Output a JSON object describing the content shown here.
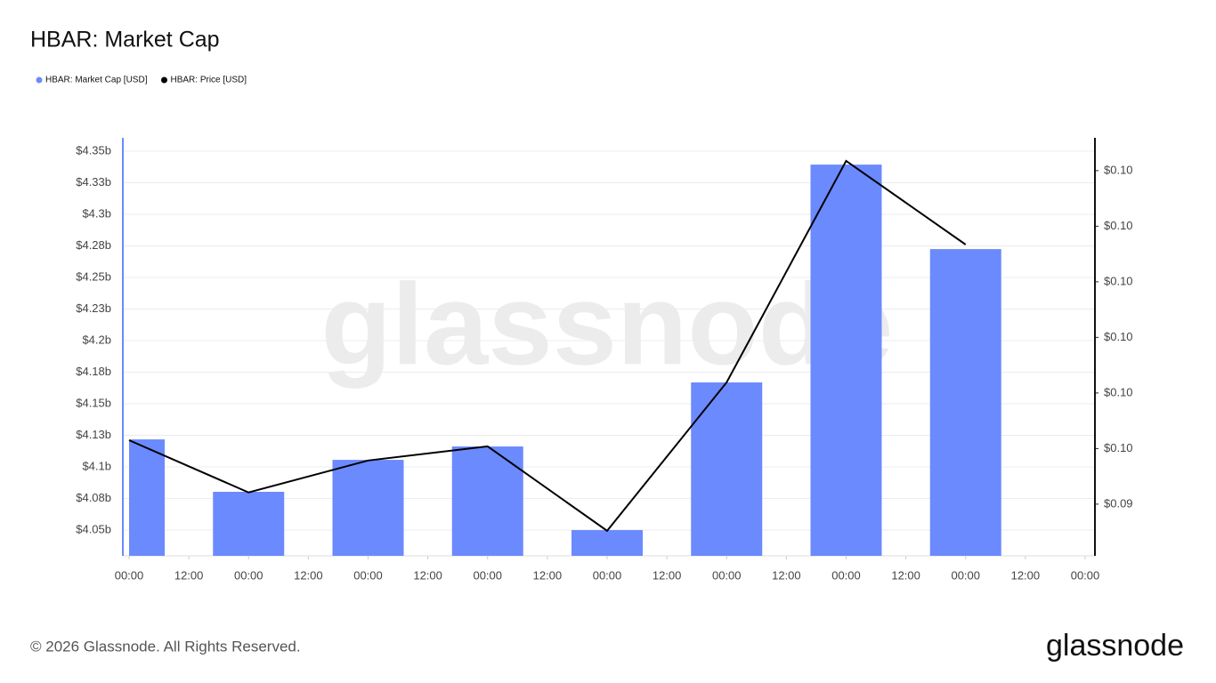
{
  "chart_data": {
    "type": "bar",
    "title": "HBAR: Market Cap",
    "watermark": "glassnode",
    "footer": "© 2026 Glassnode. All Rights Reserved.",
    "logo": "glassnode",
    "x": [
      0,
      24,
      48,
      72,
      96,
      120,
      144,
      168
    ],
    "xlim": [
      0,
      192
    ],
    "xticks": [
      {
        "value": 0,
        "label": "00:00"
      },
      {
        "value": 12,
        "label": "12:00"
      },
      {
        "value": 24,
        "label": "00:00"
      },
      {
        "value": 36,
        "label": "12:00"
      },
      {
        "value": 48,
        "label": "00:00"
      },
      {
        "value": 60,
        "label": "12:00"
      },
      {
        "value": 72,
        "label": "00:00"
      },
      {
        "value": 84,
        "label": "12:00"
      },
      {
        "value": 96,
        "label": "00:00"
      },
      {
        "value": 108,
        "label": "12:00"
      },
      {
        "value": 120,
        "label": "00:00"
      },
      {
        "value": 132,
        "label": "12:00"
      },
      {
        "value": 144,
        "label": "00:00"
      },
      {
        "value": 156,
        "label": "12:00"
      },
      {
        "value": 168,
        "label": "00:00"
      },
      {
        "value": 180,
        "label": "12:00"
      },
      {
        "value": 192,
        "label": "00:00"
      }
    ],
    "ylim": [
      4029600000,
      4360600000
    ],
    "yticks": [
      {
        "value": 4050000000,
        "label": "$4.05b"
      },
      {
        "value": 4075000000,
        "label": "$4.08b"
      },
      {
        "value": 4100000000,
        "label": "$4.1b"
      },
      {
        "value": 4125000000,
        "label": "$4.13b"
      },
      {
        "value": 4150000000,
        "label": "$4.15b"
      },
      {
        "value": 4175000000,
        "label": "$4.18b"
      },
      {
        "value": 4200000000,
        "label": "$4.2b"
      },
      {
        "value": 4225000000,
        "label": "$4.23b"
      },
      {
        "value": 4250000000,
        "label": "$4.25b"
      },
      {
        "value": 4275000000,
        "label": "$4.28b"
      },
      {
        "value": 4300000000,
        "label": "$4.3b"
      },
      {
        "value": 4325000000,
        "label": "$4.33b"
      },
      {
        "value": 4350000000,
        "label": "$4.35b"
      }
    ],
    "y2lim": [
      0.09214,
      0.10718
    ],
    "y2ticks": [
      {
        "value": 0.094,
        "label": "$0.09"
      },
      {
        "value": 0.096,
        "label": "$0.10"
      },
      {
        "value": 0.098,
        "label": "$0.10"
      },
      {
        "value": 0.1,
        "label": "$0.10"
      },
      {
        "value": 0.102,
        "label": "$0.10"
      },
      {
        "value": 0.104,
        "label": "$0.10"
      },
      {
        "value": 0.106,
        "label": "$0.10"
      }
    ],
    "grid": true,
    "series": [
      {
        "name": "HBAR: Market Cap [USD]",
        "type": "bar",
        "color": "#6b8afd",
        "values": [
          4121800000,
          4080300000,
          4105600000,
          4116200000,
          4050000000,
          4166900000,
          4339400000,
          4272500000
        ]
      },
      {
        "name": "HBAR: Price [USD]",
        "type": "line",
        "color": "#000000",
        "axis": "y2",
        "values": [
          0.0963,
          0.09442,
          0.09557,
          0.09608,
          0.09304,
          0.09838,
          0.10635,
          0.10334
        ]
      }
    ]
  }
}
